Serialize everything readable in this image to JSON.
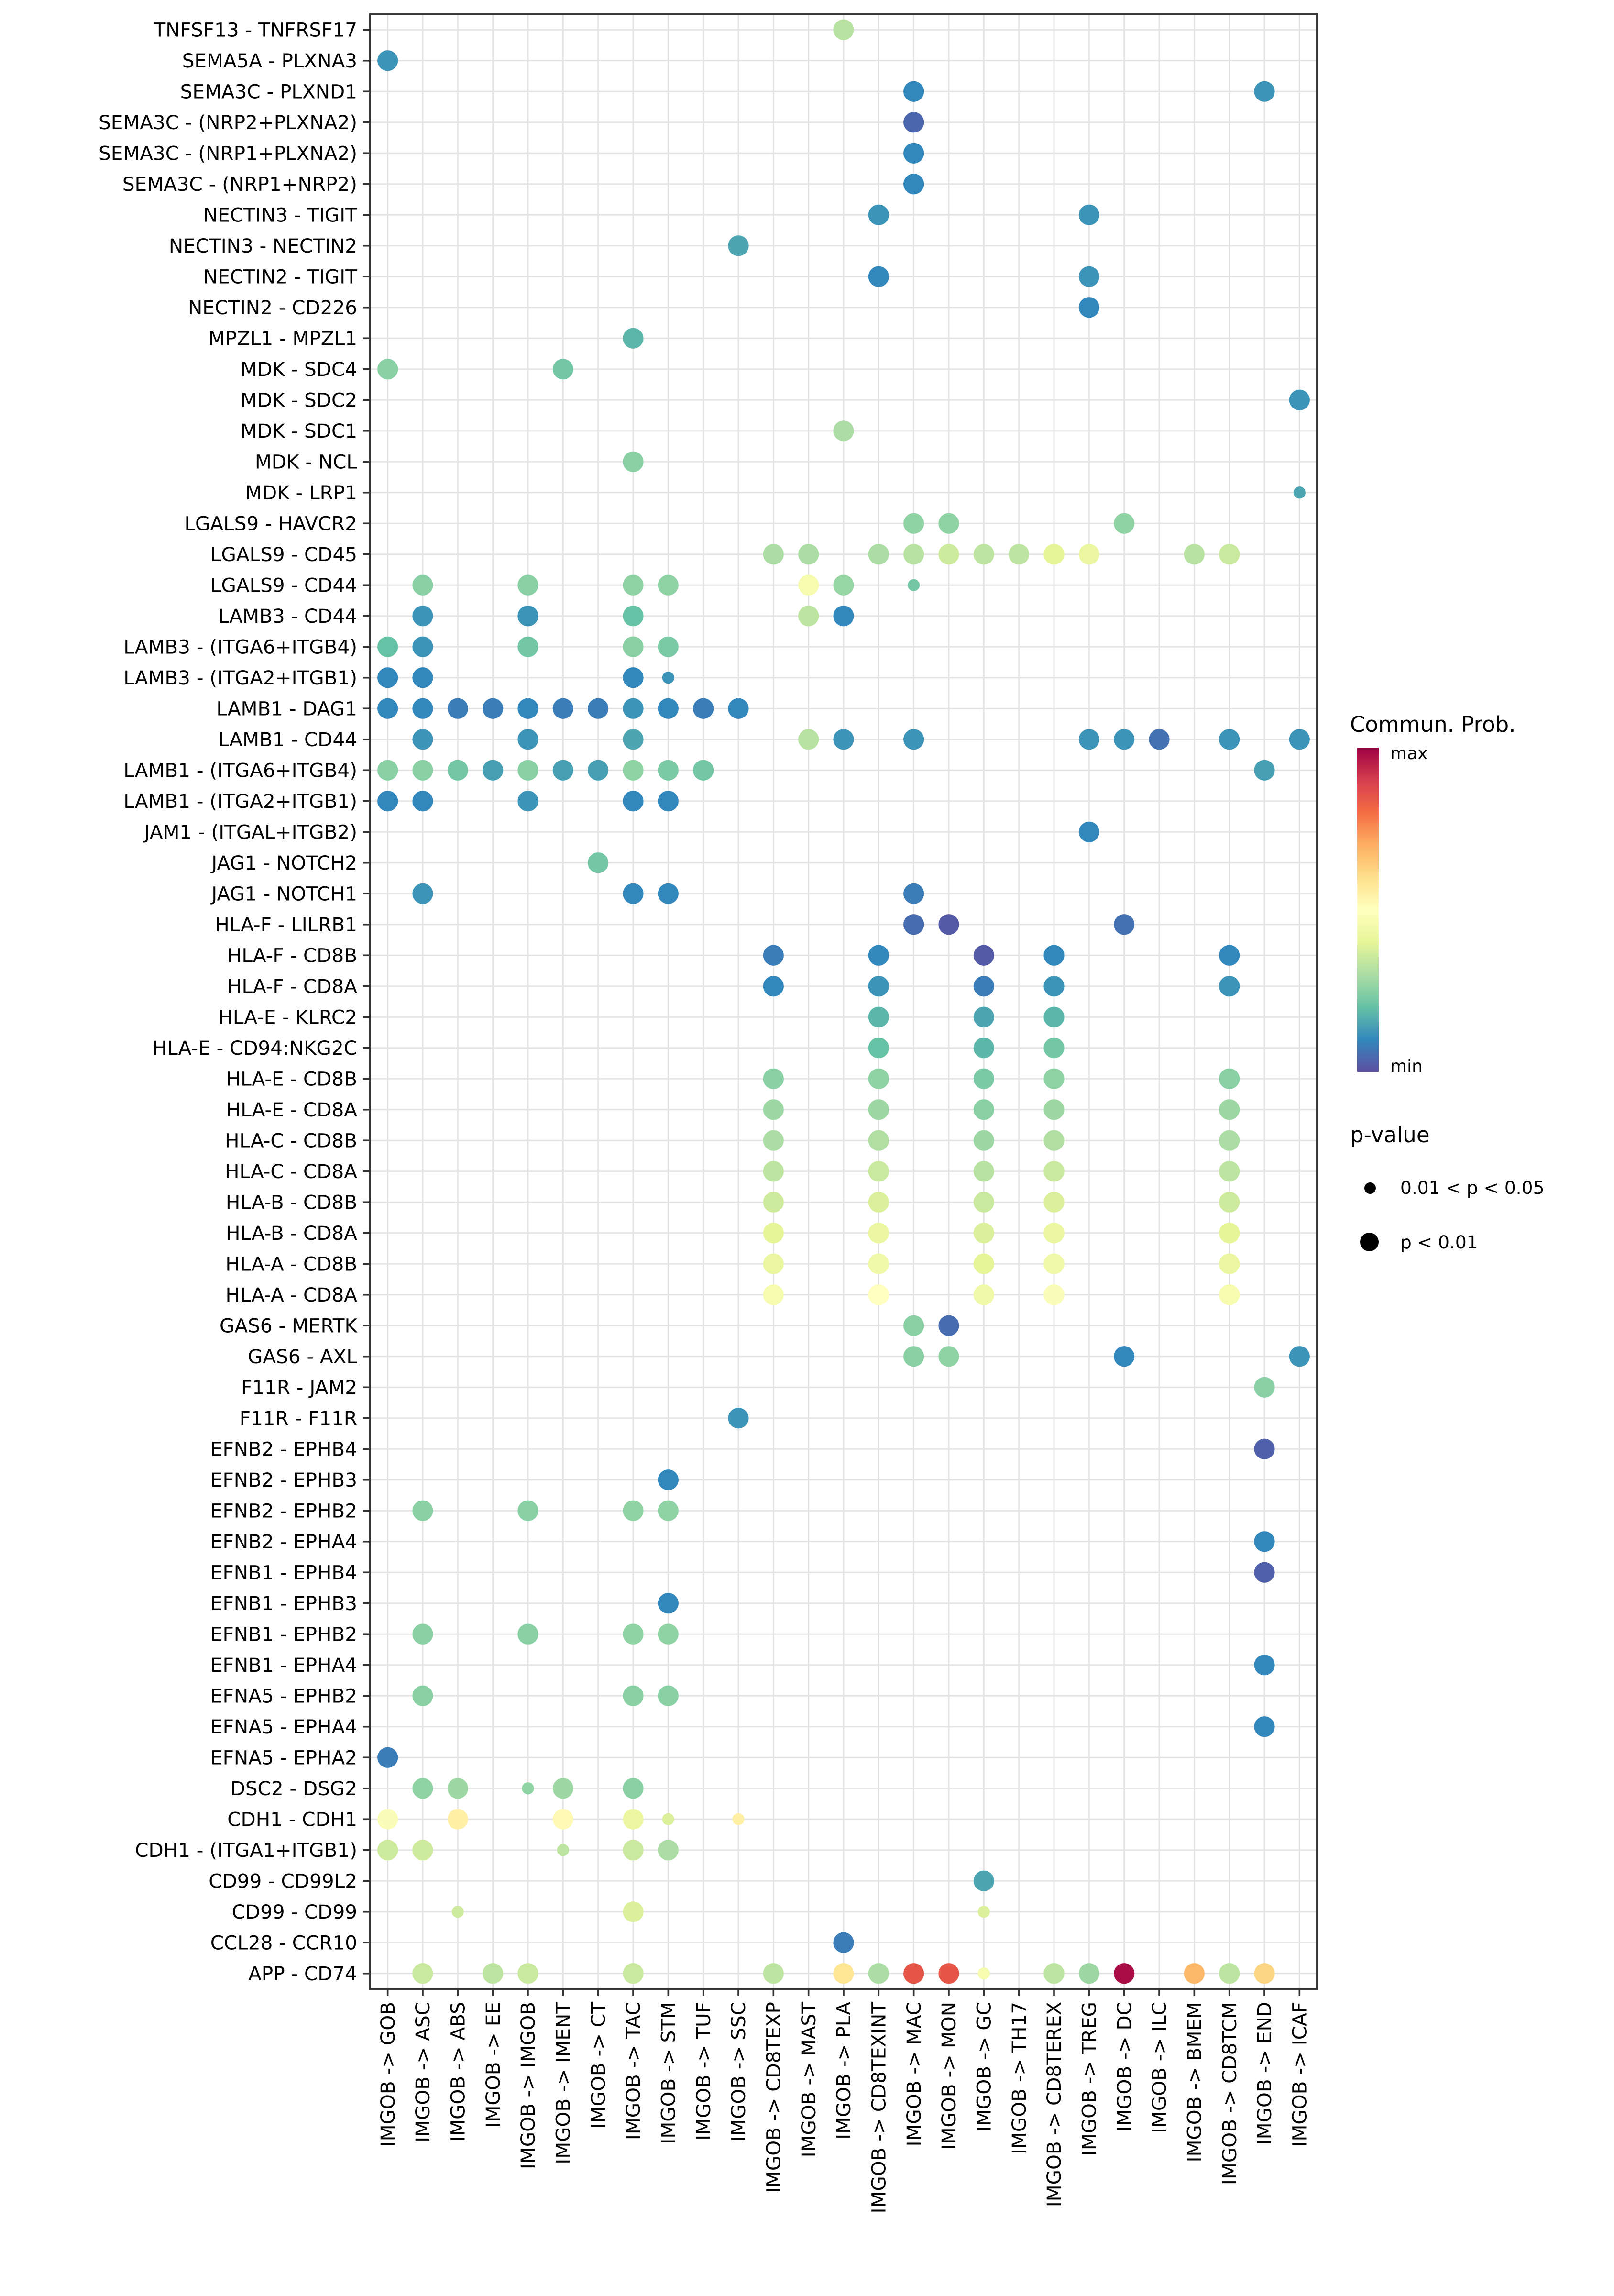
{
  "chart_data": {
    "type": "scatter",
    "subtype": "bubble-dotplot",
    "title": "",
    "xlabel": "",
    "ylabel": "",
    "grid": true,
    "columns": [
      "IMGOB -> GOB",
      "IMGOB -> ASC",
      "IMGOB -> ABS",
      "IMGOB -> EE",
      "IMGOB -> IMGOB",
      "IMGOB -> IMENT",
      "IMGOB -> CT",
      "IMGOB -> TAC",
      "IMGOB -> STM",
      "IMGOB -> TUF",
      "IMGOB -> SSC",
      "IMGOB -> CD8TEXP",
      "IMGOB -> MAST",
      "IMGOB -> PLA",
      "IMGOB -> CD8TEXINT",
      "IMGOB -> MAC",
      "IMGOB -> MON",
      "IMGOB -> GC",
      "IMGOB -> TH17",
      "IMGOB -> CD8TEREX",
      "IMGOB -> TREG",
      "IMGOB -> DC",
      "IMGOB -> ILC",
      "IMGOB -> BMEM",
      "IMGOB -> CD8TCM",
      "IMGOB -> END",
      "IMGOB -> ICAF"
    ],
    "rows": [
      "TNFSF13 - TNFRSF17",
      "SEMA5A - PLXNA3",
      "SEMA3C - PLXND1",
      "SEMA3C - (NRP2+PLXNA2)",
      "SEMA3C - (NRP1+PLXNA2)",
      "SEMA3C - (NRP1+NRP2)",
      "NECTIN3 - TIGIT",
      "NECTIN3 - NECTIN2",
      "NECTIN2 - TIGIT",
      "NECTIN2 - CD226",
      "MPZL1 - MPZL1",
      "MDK - SDC4",
      "MDK - SDC2",
      "MDK - SDC1",
      "MDK - NCL",
      "MDK - LRP1",
      "LGALS9 - HAVCR2",
      "LGALS9 - CD45",
      "LGALS9 - CD44",
      "LAMB3 - CD44",
      "LAMB3 - (ITGA6+ITGB4)",
      "LAMB3 - (ITGA2+ITGB1)",
      "LAMB1 - DAG1",
      "LAMB1 - CD44",
      "LAMB1 - (ITGA6+ITGB4)",
      "LAMB1 - (ITGA2+ITGB1)",
      "JAM1 - (ITGAL+ITGB2)",
      "JAG1 - NOTCH2",
      "JAG1 - NOTCH1",
      "HLA-F - LILRB1",
      "HLA-F - CD8B",
      "HLA-F - CD8A",
      "HLA-E - KLRC2",
      "HLA-E - CD94:NKG2C",
      "HLA-E - CD8B",
      "HLA-E - CD8A",
      "HLA-C - CD8B",
      "HLA-C - CD8A",
      "HLA-B - CD8B",
      "HLA-B - CD8A",
      "HLA-A - CD8B",
      "HLA-A - CD8A",
      "GAS6 - MERTK",
      "GAS6 - AXL",
      "F11R - JAM2",
      "F11R - F11R",
      "EFNB2 - EPHB4",
      "EFNB2 - EPHB3",
      "EFNB2 - EPHB2",
      "EFNB2 - EPHA4",
      "EFNB1 - EPHB4",
      "EFNB1 - EPHB3",
      "EFNB1 - EPHB2",
      "EFNB1 - EPHA4",
      "EFNA5 - EPHB2",
      "EFNA5 - EPHA4",
      "EFNA5 - EPHA2",
      "DSC2 - DSG2",
      "CDH1 - CDH1",
      "CDH1 - (ITGA1+ITGB1)",
      "CD99 - CD99L2",
      "CD99 - CD99",
      "CCL28 - CCR10",
      "APP - CD74"
    ],
    "dot_format": [
      "row_index",
      "col_index",
      "commun_prob_normalized_0to1",
      "p_lt_0.01_flag"
    ],
    "dots": [
      [
        0,
        13,
        0.32,
        1
      ],
      [
        1,
        0,
        0.12,
        1
      ],
      [
        2,
        15,
        0.1,
        1
      ],
      [
        2,
        25,
        0.12,
        1
      ],
      [
        3,
        15,
        0.04,
        1
      ],
      [
        4,
        15,
        0.1,
        1
      ],
      [
        5,
        15,
        0.1,
        1
      ],
      [
        6,
        14,
        0.12,
        1
      ],
      [
        6,
        20,
        0.12,
        1
      ],
      [
        7,
        10,
        0.15,
        1
      ],
      [
        8,
        14,
        0.1,
        1
      ],
      [
        8,
        20,
        0.12,
        1
      ],
      [
        9,
        20,
        0.1,
        1
      ],
      [
        10,
        7,
        0.18,
        1
      ],
      [
        11,
        0,
        0.25,
        1
      ],
      [
        11,
        5,
        0.22,
        1
      ],
      [
        12,
        26,
        0.12,
        1
      ],
      [
        13,
        13,
        0.3,
        1
      ],
      [
        14,
        7,
        0.25,
        1
      ],
      [
        15,
        26,
        0.15,
        0
      ],
      [
        16,
        15,
        0.26,
        1
      ],
      [
        16,
        16,
        0.26,
        1
      ],
      [
        16,
        21,
        0.26,
        1
      ],
      [
        17,
        11,
        0.3,
        1
      ],
      [
        17,
        12,
        0.3,
        1
      ],
      [
        17,
        14,
        0.3,
        1
      ],
      [
        17,
        15,
        0.32,
        1
      ],
      [
        17,
        16,
        0.36,
        1
      ],
      [
        17,
        17,
        0.33,
        1
      ],
      [
        17,
        18,
        0.33,
        1
      ],
      [
        17,
        19,
        0.4,
        1
      ],
      [
        17,
        20,
        0.42,
        1
      ],
      [
        17,
        23,
        0.32,
        1
      ],
      [
        17,
        24,
        0.35,
        1
      ],
      [
        18,
        1,
        0.25,
        1
      ],
      [
        18,
        4,
        0.25,
        1
      ],
      [
        18,
        7,
        0.26,
        1
      ],
      [
        18,
        8,
        0.26,
        1
      ],
      [
        18,
        12,
        0.46,
        1
      ],
      [
        18,
        13,
        0.27,
        1
      ],
      [
        18,
        15,
        0.22,
        0
      ],
      [
        19,
        1,
        0.12,
        1
      ],
      [
        19,
        4,
        0.12,
        1
      ],
      [
        19,
        7,
        0.2,
        1
      ],
      [
        19,
        12,
        0.33,
        1
      ],
      [
        19,
        13,
        0.1,
        1
      ],
      [
        20,
        0,
        0.2,
        1
      ],
      [
        20,
        1,
        0.12,
        1
      ],
      [
        20,
        4,
        0.22,
        1
      ],
      [
        20,
        7,
        0.25,
        1
      ],
      [
        20,
        8,
        0.23,
        1
      ],
      [
        21,
        0,
        0.1,
        1
      ],
      [
        21,
        1,
        0.1,
        1
      ],
      [
        21,
        7,
        0.1,
        1
      ],
      [
        21,
        8,
        0.12,
        0
      ],
      [
        22,
        0,
        0.1,
        1
      ],
      [
        22,
        1,
        0.1,
        1
      ],
      [
        22,
        2,
        0.08,
        1
      ],
      [
        22,
        3,
        0.08,
        1
      ],
      [
        22,
        4,
        0.1,
        1
      ],
      [
        22,
        5,
        0.08,
        1
      ],
      [
        22,
        6,
        0.08,
        1
      ],
      [
        22,
        7,
        0.12,
        1
      ],
      [
        22,
        8,
        0.1,
        1
      ],
      [
        22,
        9,
        0.08,
        1
      ],
      [
        22,
        10,
        0.1,
        1
      ],
      [
        23,
        1,
        0.12,
        1
      ],
      [
        23,
        4,
        0.12,
        1
      ],
      [
        23,
        7,
        0.15,
        1
      ],
      [
        23,
        12,
        0.32,
        1
      ],
      [
        23,
        13,
        0.12,
        1
      ],
      [
        23,
        15,
        0.12,
        1
      ],
      [
        23,
        20,
        0.12,
        1
      ],
      [
        23,
        21,
        0.12,
        1
      ],
      [
        23,
        22,
        0.06,
        1
      ],
      [
        23,
        24,
        0.12,
        1
      ],
      [
        23,
        26,
        0.12,
        1
      ],
      [
        24,
        0,
        0.25,
        1
      ],
      [
        24,
        1,
        0.25,
        1
      ],
      [
        24,
        2,
        0.22,
        1
      ],
      [
        24,
        3,
        0.14,
        1
      ],
      [
        24,
        4,
        0.25,
        1
      ],
      [
        24,
        5,
        0.14,
        1
      ],
      [
        24,
        6,
        0.14,
        1
      ],
      [
        24,
        7,
        0.26,
        1
      ],
      [
        24,
        8,
        0.23,
        1
      ],
      [
        24,
        9,
        0.22,
        1
      ],
      [
        24,
        25,
        0.14,
        1
      ],
      [
        25,
        0,
        0.1,
        1
      ],
      [
        25,
        1,
        0.1,
        1
      ],
      [
        25,
        4,
        0.12,
        1
      ],
      [
        25,
        7,
        0.1,
        1
      ],
      [
        25,
        8,
        0.1,
        1
      ],
      [
        26,
        20,
        0.1,
        1
      ],
      [
        27,
        6,
        0.22,
        1
      ],
      [
        28,
        1,
        0.12,
        1
      ],
      [
        28,
        7,
        0.1,
        1
      ],
      [
        28,
        8,
        0.1,
        1
      ],
      [
        28,
        15,
        0.08,
        1
      ],
      [
        29,
        15,
        0.05,
        1
      ],
      [
        29,
        16,
        0.02,
        1
      ],
      [
        29,
        21,
        0.06,
        1
      ],
      [
        30,
        11,
        0.08,
        1
      ],
      [
        30,
        14,
        0.1,
        1
      ],
      [
        30,
        17,
        0.02,
        1
      ],
      [
        30,
        19,
        0.1,
        1
      ],
      [
        30,
        24,
        0.1,
        1
      ],
      [
        31,
        11,
        0.1,
        1
      ],
      [
        31,
        14,
        0.12,
        1
      ],
      [
        31,
        17,
        0.08,
        1
      ],
      [
        31,
        19,
        0.12,
        1
      ],
      [
        31,
        24,
        0.12,
        1
      ],
      [
        32,
        14,
        0.18,
        1
      ],
      [
        32,
        17,
        0.15,
        1
      ],
      [
        32,
        19,
        0.18,
        1
      ],
      [
        33,
        14,
        0.2,
        1
      ],
      [
        33,
        17,
        0.18,
        1
      ],
      [
        33,
        19,
        0.22,
        1
      ],
      [
        34,
        11,
        0.25,
        1
      ],
      [
        34,
        14,
        0.26,
        1
      ],
      [
        34,
        17,
        0.23,
        1
      ],
      [
        34,
        19,
        0.26,
        1
      ],
      [
        34,
        24,
        0.25,
        1
      ],
      [
        35,
        11,
        0.28,
        1
      ],
      [
        35,
        14,
        0.28,
        1
      ],
      [
        35,
        17,
        0.25,
        1
      ],
      [
        35,
        19,
        0.28,
        1
      ],
      [
        35,
        24,
        0.28,
        1
      ],
      [
        36,
        11,
        0.3,
        1
      ],
      [
        36,
        14,
        0.31,
        1
      ],
      [
        36,
        17,
        0.28,
        1
      ],
      [
        36,
        19,
        0.31,
        1
      ],
      [
        36,
        24,
        0.3,
        1
      ],
      [
        37,
        11,
        0.33,
        1
      ],
      [
        37,
        14,
        0.35,
        1
      ],
      [
        37,
        17,
        0.32,
        1
      ],
      [
        37,
        19,
        0.35,
        1
      ],
      [
        37,
        24,
        0.33,
        1
      ],
      [
        38,
        11,
        0.36,
        1
      ],
      [
        38,
        14,
        0.38,
        1
      ],
      [
        38,
        17,
        0.35,
        1
      ],
      [
        38,
        19,
        0.38,
        1
      ],
      [
        38,
        24,
        0.36,
        1
      ],
      [
        39,
        11,
        0.4,
        1
      ],
      [
        39,
        14,
        0.42,
        1
      ],
      [
        39,
        17,
        0.38,
        1
      ],
      [
        39,
        19,
        0.42,
        1
      ],
      [
        39,
        24,
        0.4,
        1
      ],
      [
        40,
        11,
        0.42,
        1
      ],
      [
        40,
        14,
        0.44,
        1
      ],
      [
        40,
        17,
        0.4,
        1
      ],
      [
        40,
        19,
        0.44,
        1
      ],
      [
        40,
        24,
        0.42,
        1
      ],
      [
        41,
        11,
        0.46,
        1
      ],
      [
        41,
        14,
        0.5,
        1
      ],
      [
        41,
        17,
        0.44,
        1
      ],
      [
        41,
        19,
        0.48,
        1
      ],
      [
        41,
        24,
        0.46,
        1
      ],
      [
        42,
        15,
        0.25,
        1
      ],
      [
        42,
        16,
        0.05,
        1
      ],
      [
        43,
        15,
        0.25,
        1
      ],
      [
        43,
        16,
        0.26,
        1
      ],
      [
        43,
        21,
        0.1,
        1
      ],
      [
        43,
        26,
        0.12,
        1
      ],
      [
        44,
        25,
        0.25,
        1
      ],
      [
        45,
        10,
        0.12,
        1
      ],
      [
        46,
        25,
        0.03,
        1
      ],
      [
        47,
        8,
        0.1,
        1
      ],
      [
        48,
        1,
        0.25,
        1
      ],
      [
        48,
        4,
        0.25,
        1
      ],
      [
        48,
        7,
        0.26,
        1
      ],
      [
        48,
        8,
        0.26,
        1
      ],
      [
        49,
        25,
        0.1,
        1
      ],
      [
        50,
        25,
        0.03,
        1
      ],
      [
        51,
        8,
        0.1,
        1
      ],
      [
        52,
        1,
        0.25,
        1
      ],
      [
        52,
        4,
        0.25,
        1
      ],
      [
        52,
        7,
        0.26,
        1
      ],
      [
        52,
        8,
        0.26,
        1
      ],
      [
        53,
        25,
        0.1,
        1
      ],
      [
        54,
        1,
        0.25,
        1
      ],
      [
        54,
        7,
        0.25,
        1
      ],
      [
        54,
        8,
        0.25,
        1
      ],
      [
        55,
        25,
        0.1,
        1
      ],
      [
        56,
        0,
        0.08,
        1
      ],
      [
        57,
        1,
        0.26,
        1
      ],
      [
        57,
        2,
        0.28,
        1
      ],
      [
        57,
        4,
        0.26,
        0
      ],
      [
        57,
        5,
        0.28,
        1
      ],
      [
        57,
        7,
        0.25,
        1
      ],
      [
        58,
        0,
        0.48,
        1
      ],
      [
        58,
        2,
        0.55,
        1
      ],
      [
        58,
        5,
        0.52,
        1
      ],
      [
        58,
        7,
        0.42,
        1
      ],
      [
        58,
        8,
        0.38,
        0
      ],
      [
        58,
        10,
        0.55,
        0
      ],
      [
        59,
        0,
        0.36,
        1
      ],
      [
        59,
        1,
        0.36,
        1
      ],
      [
        59,
        5,
        0.33,
        0
      ],
      [
        59,
        7,
        0.35,
        1
      ],
      [
        59,
        8,
        0.3,
        1
      ],
      [
        60,
        17,
        0.15,
        1
      ],
      [
        61,
        2,
        0.36,
        0
      ],
      [
        61,
        7,
        0.38,
        1
      ],
      [
        61,
        17,
        0.38,
        0
      ],
      [
        62,
        13,
        0.08,
        1
      ],
      [
        63,
        1,
        0.35,
        1
      ],
      [
        63,
        3,
        0.33,
        1
      ],
      [
        63,
        4,
        0.35,
        1
      ],
      [
        63,
        7,
        0.35,
        1
      ],
      [
        63,
        11,
        0.33,
        1
      ],
      [
        63,
        13,
        0.58,
        1
      ],
      [
        63,
        14,
        0.3,
        1
      ],
      [
        63,
        15,
        0.85,
        1
      ],
      [
        63,
        16,
        0.85,
        1
      ],
      [
        63,
        17,
        0.46,
        0
      ],
      [
        63,
        19,
        0.33,
        1
      ],
      [
        63,
        20,
        0.28,
        1
      ],
      [
        63,
        21,
        0.98,
        1
      ],
      [
        63,
        23,
        0.68,
        1
      ],
      [
        63,
        24,
        0.33,
        1
      ],
      [
        63,
        25,
        0.62,
        1
      ]
    ],
    "color_legend": {
      "title": "Commun. Prob.",
      "max_label": "max",
      "min_label": "min",
      "colormap": [
        "#5E4FA2",
        "#3288BD",
        "#66C2A5",
        "#ABDDA4",
        "#E6F598",
        "#FFFFBF",
        "#FEE08B",
        "#FDAE61",
        "#F46D43",
        "#D53E4F",
        "#9E0142"
      ]
    },
    "size_legend": {
      "title": "p-value",
      "dot_color": "#000000",
      "items": [
        {
          "label": "0.01 < p < 0.05",
          "size": "small"
        },
        {
          "label": "p < 0.01",
          "size": "large"
        }
      ]
    }
  }
}
